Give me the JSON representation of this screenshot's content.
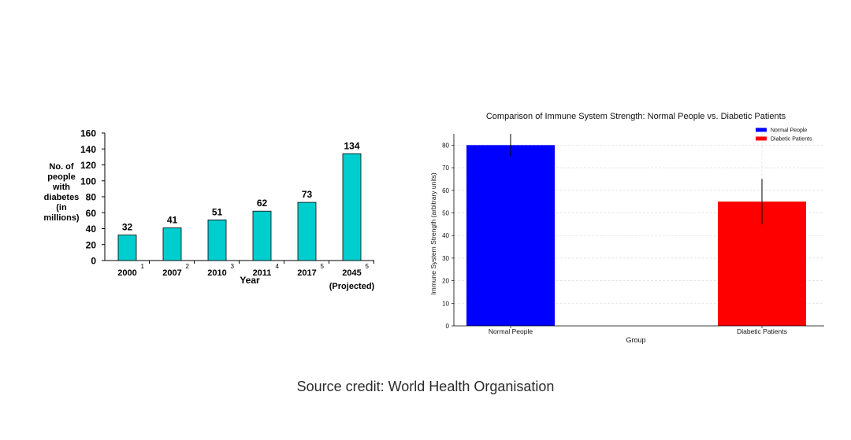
{
  "source_credit": "Source credit: World Health Organisation",
  "colors": {
    "left_bar": "#00CDCD",
    "normal": "#0000FF",
    "diabetic": "#FF0000"
  },
  "chart_data": [
    {
      "type": "bar",
      "title": "",
      "ylabel_lines": [
        "No. of",
        "people",
        "with",
        "diabetes",
        "(in",
        "millions)"
      ],
      "xlabel": "Year",
      "categories": [
        "2000",
        "2007",
        "2010",
        "2011",
        "2017",
        "2045"
      ],
      "superscripts": [
        "1",
        "2",
        "3",
        "4",
        "5",
        "5"
      ],
      "category_notes": [
        "",
        "",
        "",
        "",
        "",
        "(Projected)"
      ],
      "values": [
        32,
        41,
        51,
        62,
        73,
        134
      ],
      "data_labels": [
        "32",
        "41",
        "51",
        "62",
        "73",
        "134"
      ],
      "ylim": [
        0,
        160
      ],
      "yticks": [
        0,
        20,
        40,
        60,
        80,
        100,
        120,
        140,
        160
      ],
      "grid": false
    },
    {
      "type": "bar",
      "title": "Comparison of Immune System Strength: Normal People vs. Diabetic Patients",
      "xlabel": "Group",
      "ylabel": "Immune System Strength (arbitrary units)",
      "categories": [
        "Normal People",
        "Diabetic Patients"
      ],
      "values": [
        80,
        55
      ],
      "errors": [
        5,
        10
      ],
      "ylim": [
        0,
        85
      ],
      "yticks": [
        0,
        10,
        20,
        30,
        40,
        50,
        60,
        70,
        80
      ],
      "grid": true,
      "legend": {
        "position": "top-right",
        "entries": [
          "Normal People",
          "Diabetic Patients"
        ]
      }
    }
  ]
}
